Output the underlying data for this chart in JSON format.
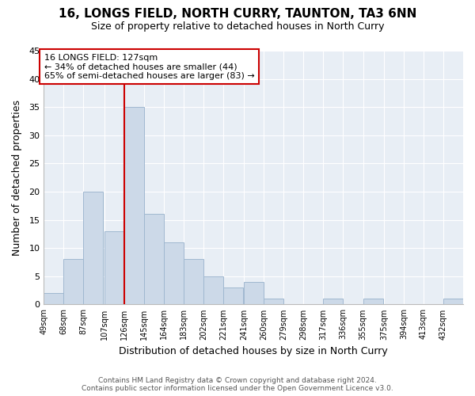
{
  "title": "16, LONGS FIELD, NORTH CURRY, TAUNTON, TA3 6NN",
  "subtitle": "Size of property relative to detached houses in North Curry",
  "xlabel": "Distribution of detached houses by size in North Curry",
  "ylabel": "Number of detached properties",
  "bin_labels": [
    "49sqm",
    "68sqm",
    "87sqm",
    "107sqm",
    "126sqm",
    "145sqm",
    "164sqm",
    "183sqm",
    "202sqm",
    "221sqm",
    "241sqm",
    "260sqm",
    "279sqm",
    "298sqm",
    "317sqm",
    "336sqm",
    "355sqm",
    "375sqm",
    "394sqm",
    "413sqm",
    "432sqm"
  ],
  "bin_edges": [
    49,
    68,
    87,
    107,
    126,
    145,
    164,
    183,
    202,
    221,
    241,
    260,
    279,
    298,
    317,
    336,
    355,
    375,
    394,
    413,
    432
  ],
  "counts": [
    2,
    8,
    20,
    13,
    35,
    16,
    11,
    8,
    5,
    3,
    4,
    1,
    0,
    0,
    1,
    0,
    1,
    0,
    0,
    0,
    1
  ],
  "bar_color": "#ccd9e8",
  "bar_edge_color": "#a0b8d0",
  "reference_line_x": 126,
  "reference_line_color": "#cc0000",
  "annotation_line1": "16 LONGS FIELD: 127sqm",
  "annotation_line2": "← 34% of detached houses are smaller (44)",
  "annotation_line3": "65% of semi-detached houses are larger (83) →",
  "annotation_box_edge": "#cc0000",
  "ylim": [
    0,
    45
  ],
  "yticks": [
    0,
    5,
    10,
    15,
    20,
    25,
    30,
    35,
    40,
    45
  ],
  "footer_line1": "Contains HM Land Registry data © Crown copyright and database right 2024.",
  "footer_line2": "Contains public sector information licensed under the Open Government Licence v3.0.",
  "bg_color": "#ffffff",
  "plot_bg_color": "#e8eef5",
  "grid_color": "#ffffff"
}
